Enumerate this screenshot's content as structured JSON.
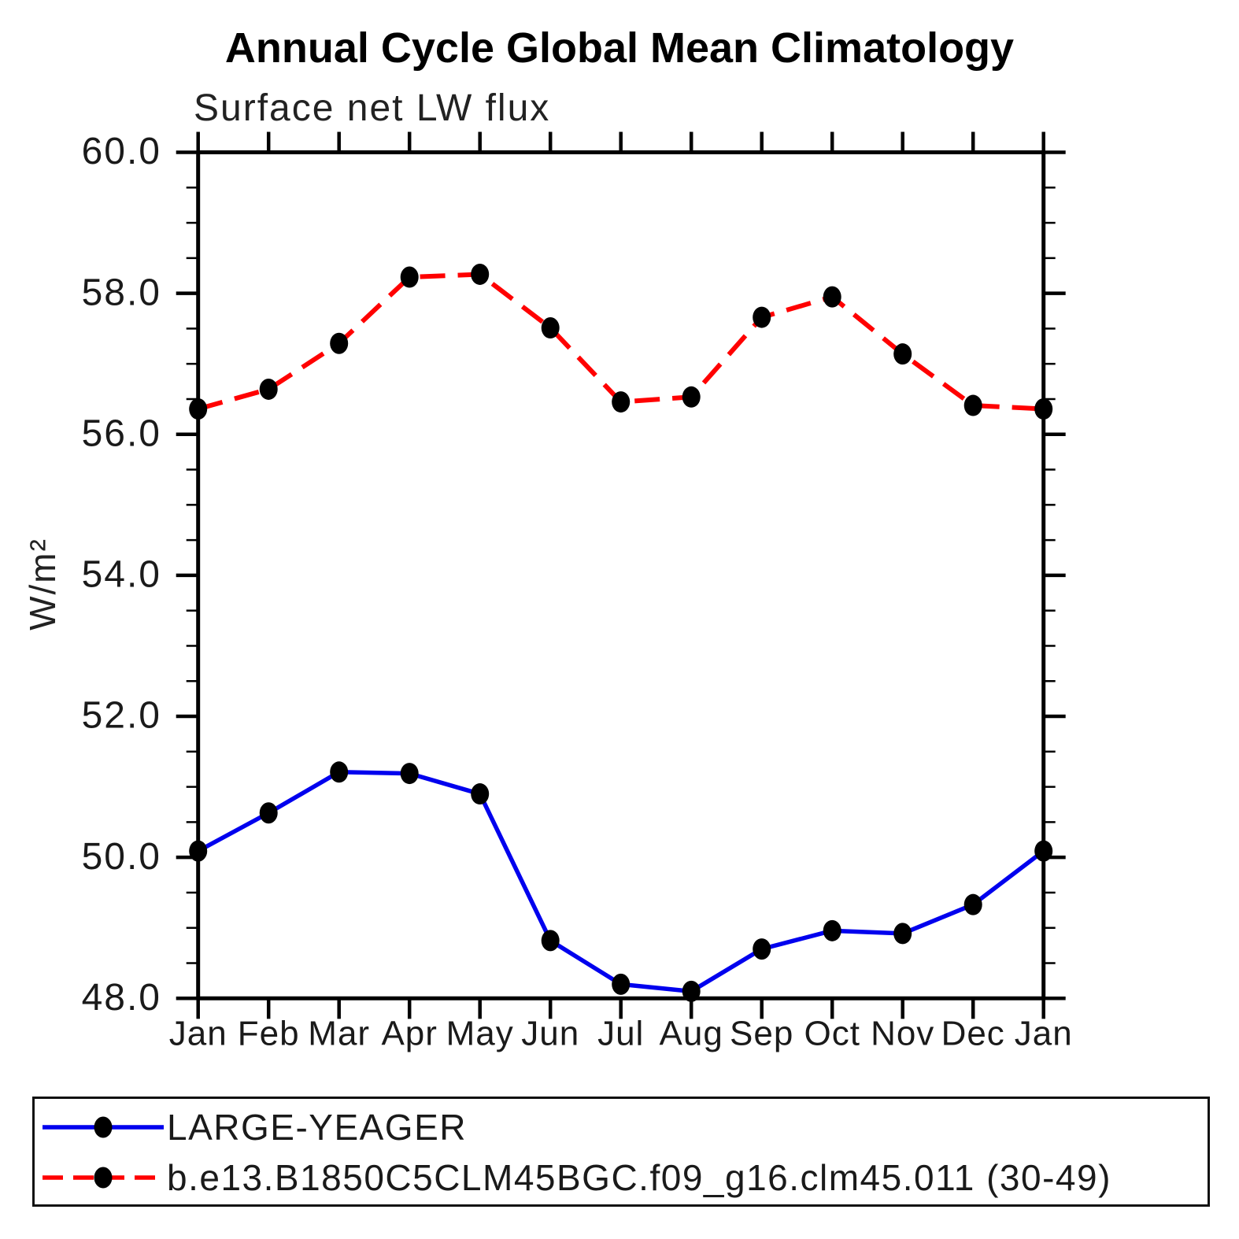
{
  "chart_data": {
    "type": "line",
    "title": "Annual Cycle Global Mean Climatology",
    "subtitle": "Surface net LW flux",
    "ylabel": "W/m²",
    "xlabel": "",
    "categories": [
      "Jan",
      "Feb",
      "Mar",
      "Apr",
      "May",
      "Jun",
      "Jul",
      "Aug",
      "Sep",
      "Oct",
      "Nov",
      "Dec",
      "Jan"
    ],
    "ylim": [
      48.0,
      60.0
    ],
    "ytick_values": [
      60,
      58,
      56,
      54,
      52,
      50,
      48
    ],
    "ytick_labels": [
      "60.0",
      "58.0",
      "56.0",
      "54.0",
      "52.0",
      "50.0",
      "48.0"
    ],
    "ytick_minor_step": 0.5,
    "grid": false,
    "legend_position": "bottom-box",
    "axis_color": "#000000",
    "marker_color": "#000000",
    "series": [
      {
        "name": "LARGE-YEAGER",
        "color": "#0000ee",
        "style": "solid",
        "marker": "filled-circle",
        "values": [
          50.09,
          50.63,
          51.21,
          51.19,
          50.9,
          48.82,
          48.2,
          48.1,
          48.7,
          48.96,
          48.92,
          49.33,
          50.09
        ]
      },
      {
        "name": "b.e13.B1850C5CLM45BGC.f09_g16.clm45.011 (30-49)",
        "color": "#ff0000",
        "style": "dashed",
        "marker": "filled-circle",
        "values": [
          56.36,
          56.64,
          57.29,
          58.23,
          58.27,
          57.51,
          56.46,
          56.53,
          57.66,
          57.95,
          57.14,
          56.41,
          56.36
        ]
      }
    ]
  }
}
